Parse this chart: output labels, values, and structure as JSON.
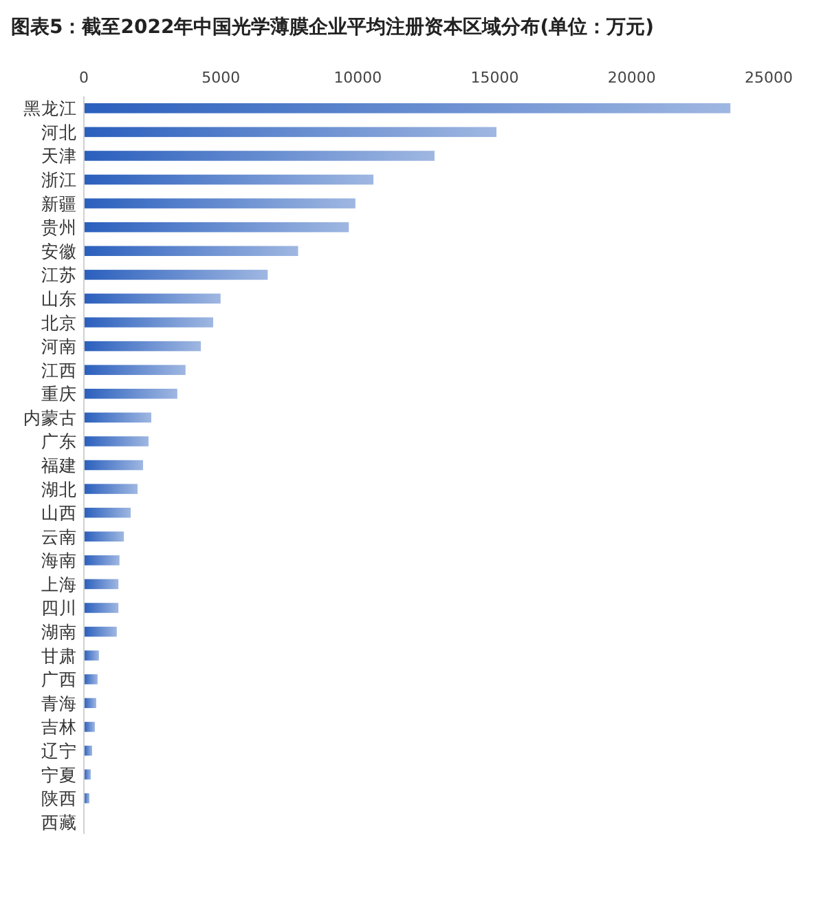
{
  "chart_data": {
    "type": "bar",
    "orientation": "horizontal",
    "title": "图表5：截至2022年中国光学薄膜企业平均注册资本区域分布(单位：万元)",
    "categories": [
      "黑龙江",
      "河北",
      "天津",
      "浙江",
      "新疆",
      "贵州",
      "安徽",
      "江苏",
      "山东",
      "北京",
      "河南",
      "江西",
      "重庆",
      "内蒙古",
      "广东",
      "福建",
      "湖北",
      "山西",
      "云南",
      "海南",
      "上海",
      "四川",
      "湖南",
      "甘肃",
      "广西",
      "青海",
      "吉林",
      "辽宁",
      "宁夏",
      "陕西",
      "西藏"
    ],
    "values": [
      23600,
      15060,
      12800,
      10570,
      9910,
      9670,
      7820,
      6710,
      4990,
      4720,
      4270,
      3710,
      3410,
      2460,
      2360,
      2160,
      1960,
      1710,
      1460,
      1300,
      1260,
      1260,
      1200,
      550,
      500,
      450,
      400,
      300,
      250,
      200,
      0
    ],
    "color": "#2a5fbd",
    "xlim": [
      0,
      25000
    ],
    "xticks": [
      0,
      5000,
      10000,
      15000,
      20000,
      25000
    ]
  }
}
